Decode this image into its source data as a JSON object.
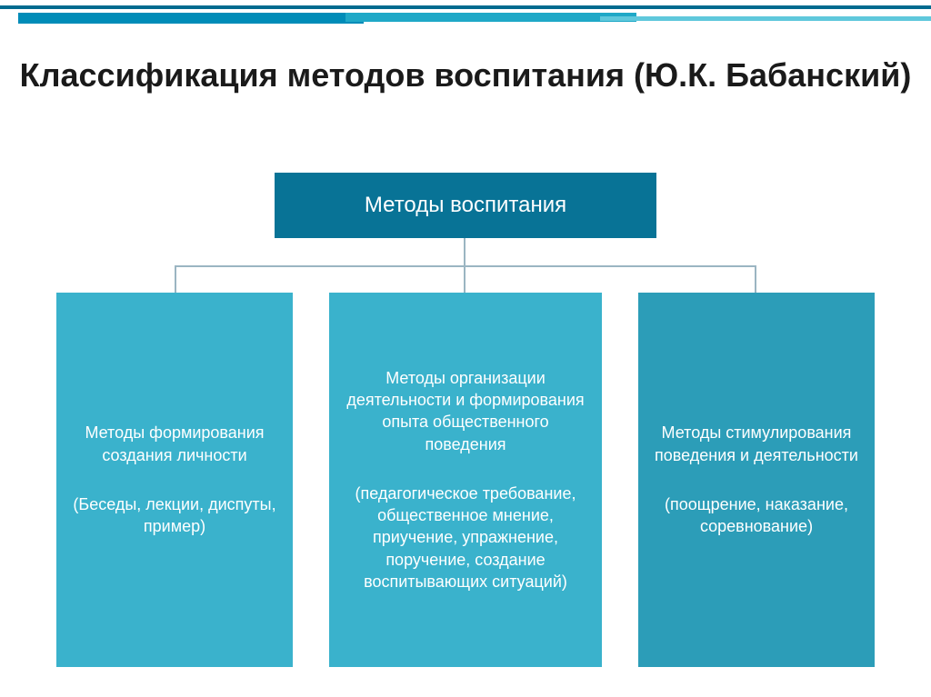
{
  "slide": {
    "title": "Классификация методов воспитания (Ю.К. Бабанский)",
    "root": {
      "label": "Методы воспитания"
    },
    "children": [
      {
        "heading": "Методы формирования создания личности",
        "sub": "(Беседы, лекции, диспуты, пример)"
      },
      {
        "heading": "Методы организации деятельности и формирования опыта общественного поведения",
        "sub": "(педагогическое требование, общественное мнение, приучение, упражнение, поручение, создание воспитывающих ситуаций)"
      },
      {
        "heading": "Методы стимулирования поведения и деятельности",
        "sub": "(поощрение, наказание, соревнование)"
      }
    ]
  },
  "style": {
    "type": "tree",
    "background_color": "#ffffff",
    "title_color": "#1a1a1a",
    "title_fontsize": 36,
    "root_box_color": "#087396",
    "root_text_color": "#ffffff",
    "root_fontsize": 24,
    "child_box_colors": [
      "#3ab2cc",
      "#3ab2cc",
      "#2c9db8"
    ],
    "child_text_color": "#ffffff",
    "child_fontsize": 18,
    "connector_color": "#9bb5c2",
    "connector_width": 2,
    "top_border_colors": [
      "#006b8f",
      "#008cb8",
      "#1fa8c7",
      "#5fc8dc"
    ]
  }
}
